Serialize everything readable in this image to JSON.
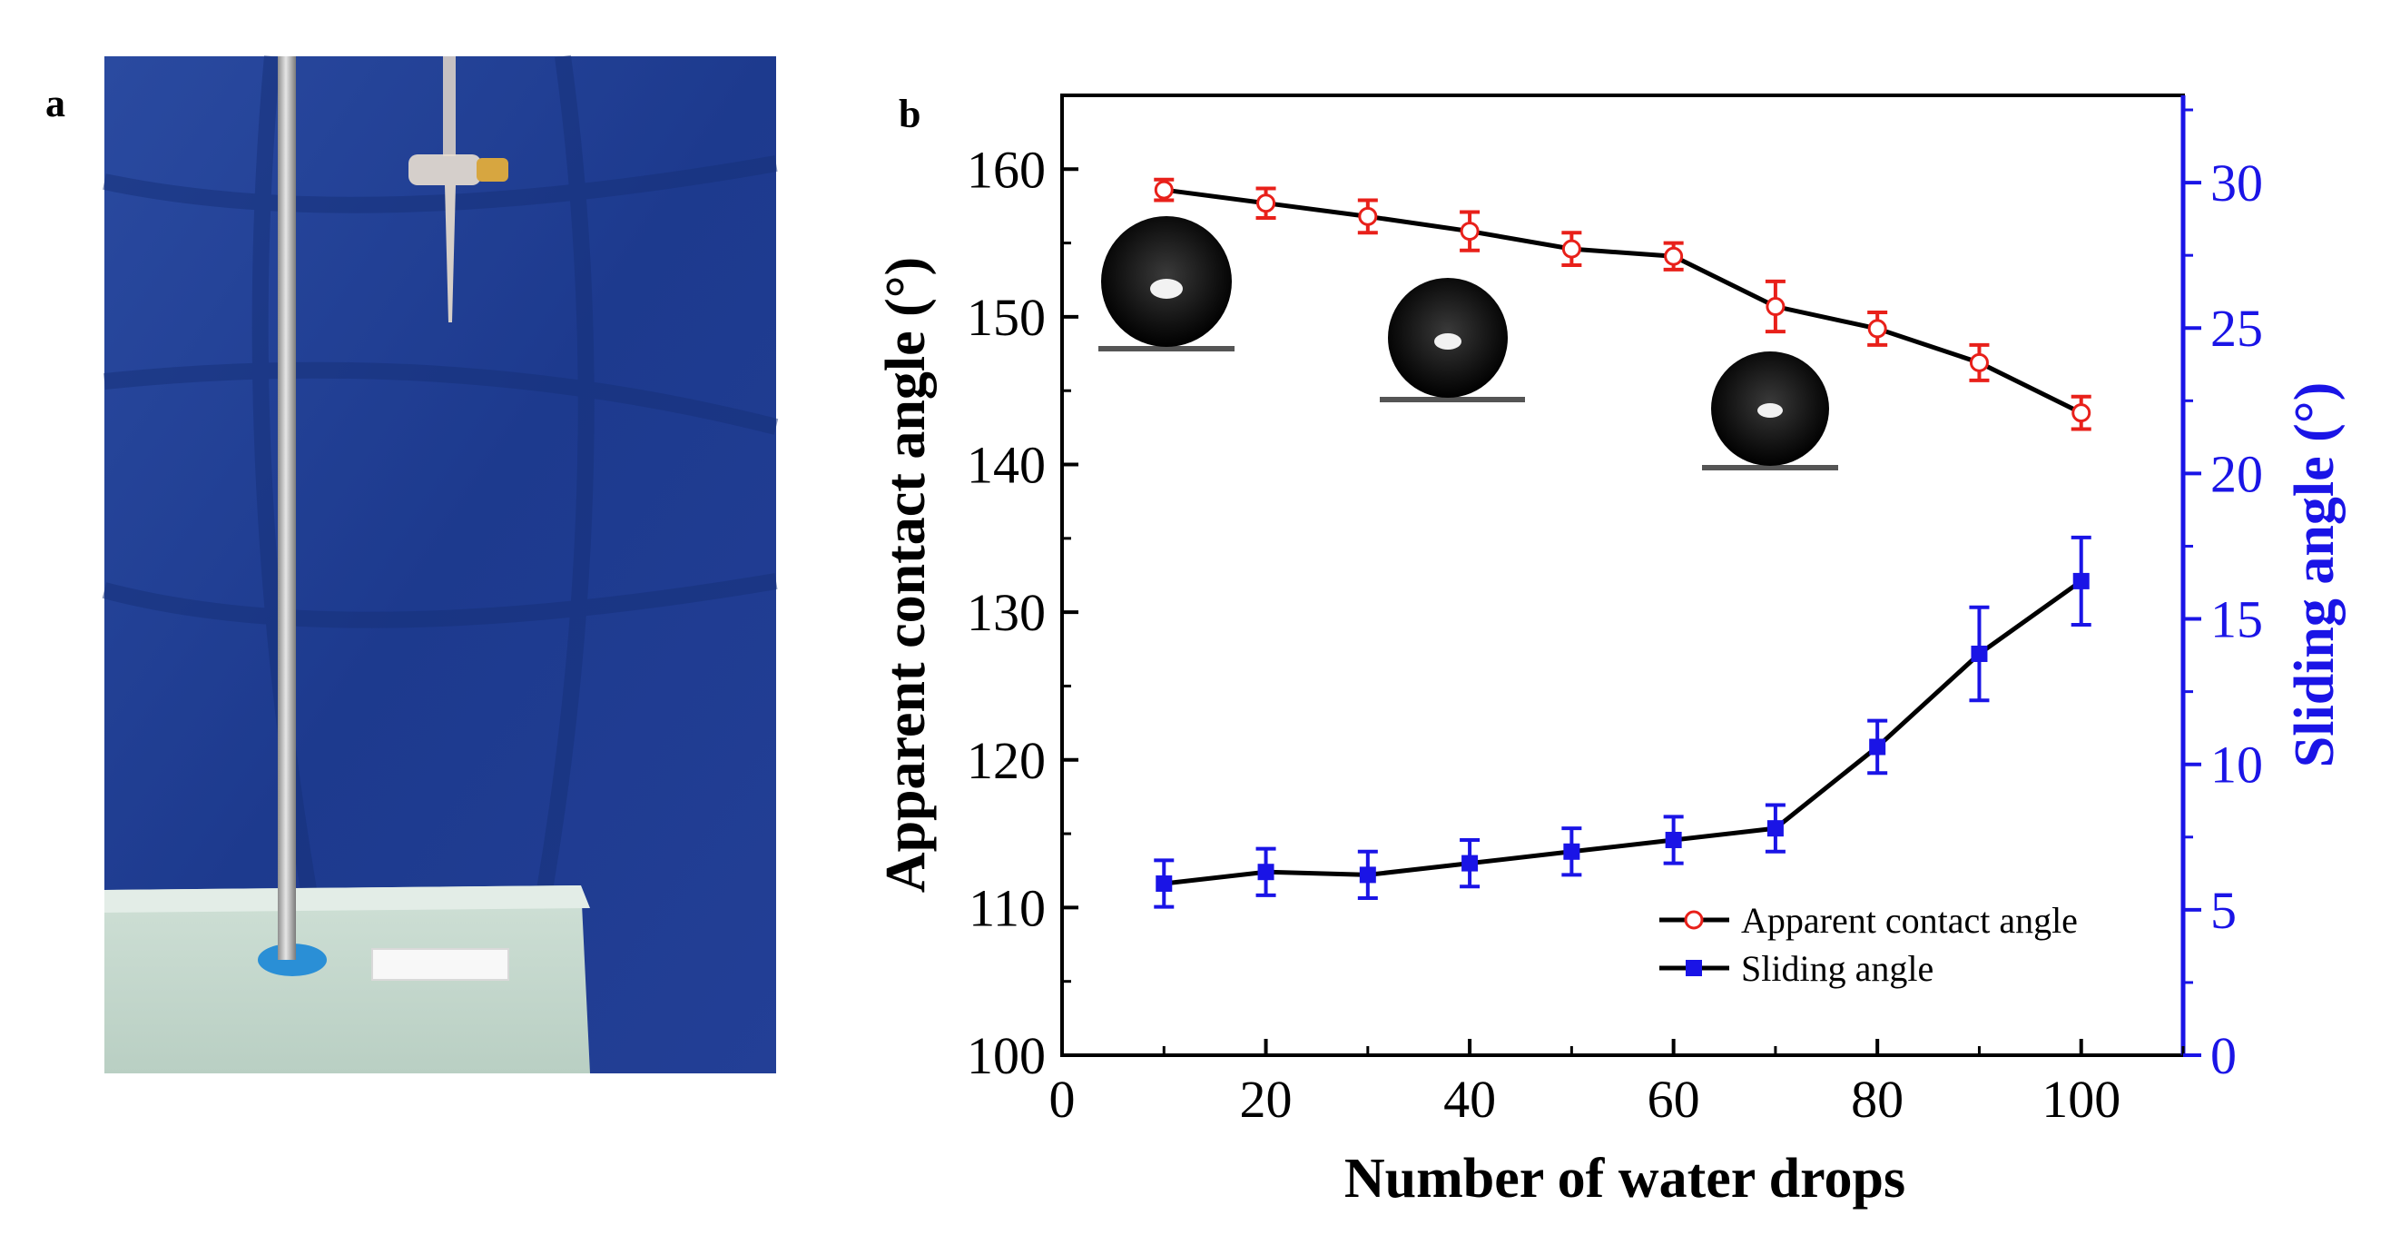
{
  "panel_a": {
    "label": "a",
    "description_icon": "photo-of-stand-and-burette"
  },
  "panel_b": {
    "label": "b"
  },
  "colors": {
    "acute_series": "#e8201a",
    "sliding_series": "#1a14e6",
    "line": "#000000",
    "right_axis": "#1a14e6",
    "cloth": "#1f3c8f"
  },
  "chart_data": {
    "type": "line",
    "title": "",
    "xlabel": "Number of water drops",
    "ylabel_left": "Apparent contact angle (°)",
    "ylabel_right": "Sliding angle (°)",
    "xlim": [
      0,
      110
    ],
    "ylim_left": [
      100,
      165
    ],
    "ylim_right": [
      0,
      33
    ],
    "x_ticks": [
      0,
      20,
      40,
      60,
      80,
      100
    ],
    "y_left_ticks": [
      100,
      110,
      120,
      130,
      140,
      150,
      160
    ],
    "y_right_ticks": [
      0,
      5,
      10,
      15,
      20,
      25,
      30
    ],
    "legend_position": "lower-right",
    "series": [
      {
        "name": "Apparent contact angle",
        "axis": "left",
        "marker": "open-circle",
        "x": [
          10,
          20,
          30,
          40,
          50,
          60,
          70,
          80,
          90,
          100
        ],
        "values": [
          158.6,
          157.7,
          156.8,
          155.8,
          154.6,
          154.1,
          150.7,
          149.2,
          146.9,
          143.5
        ],
        "errors": [
          0.7,
          1.0,
          1.1,
          1.3,
          1.1,
          0.9,
          1.7,
          1.1,
          1.2,
          1.1
        ]
      },
      {
        "name": "Sliding angle",
        "axis": "right",
        "marker": "filled-square",
        "x": [
          10,
          20,
          30,
          40,
          50,
          60,
          70,
          80,
          90,
          100
        ],
        "values": [
          5.9,
          6.3,
          6.2,
          6.6,
          7.0,
          7.4,
          7.8,
          10.6,
          13.8,
          16.3
        ],
        "errors": [
          0.8,
          0.8,
          0.8,
          0.8,
          0.8,
          0.8,
          0.8,
          0.9,
          1.6,
          1.5
        ]
      }
    ]
  }
}
